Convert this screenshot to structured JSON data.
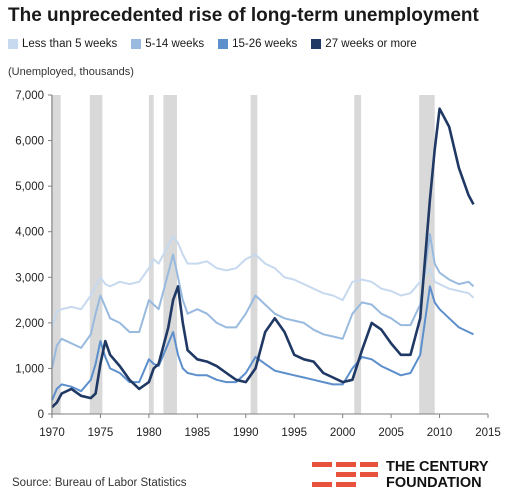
{
  "chart_data": {
    "type": "line",
    "title": "The unprecedented rise of long-term unemployment",
    "ylabel": "(Unemployed, thousands)",
    "xlabel": "",
    "xlim": [
      1970,
      2015
    ],
    "ylim": [
      0,
      7000
    ],
    "x_ticks": [
      1970,
      1975,
      1980,
      1985,
      1990,
      1995,
      2000,
      2005,
      2010,
      2015
    ],
    "x_tick_labels": [
      "1970",
      "1975",
      "1980",
      "1985",
      "1990",
      "1995",
      "2000",
      "2005",
      "2010",
      "2015"
    ],
    "y_ticks": [
      0,
      1000,
      2000,
      3000,
      4000,
      5000,
      6000,
      7000
    ],
    "y_tick_labels": [
      "0",
      "1,000",
      "2,000",
      "3,000",
      "4,000",
      "5,000",
      "6,000",
      "7,000"
    ],
    "legend_position": "top",
    "grid": false,
    "recession_bands": [
      [
        1969.9,
        1970.9
      ],
      [
        1973.9,
        1975.2
      ],
      [
        1980.0,
        1980.5
      ],
      [
        1981.5,
        1982.9
      ],
      [
        1990.5,
        1991.2
      ],
      [
        2001.2,
        2001.9
      ],
      [
        2007.9,
        2009.5
      ]
    ],
    "series": [
      {
        "name": "Less than 5 weeks",
        "color": "#c6d9ee",
        "x": [
          1970,
          1970.5,
          1971,
          1972,
          1973,
          1974,
          1974.5,
          1975,
          1975.5,
          1976,
          1977,
          1978,
          1979,
          1980,
          1980.5,
          1981,
          1982,
          1982.5,
          1983,
          1983.5,
          1984,
          1985,
          1986,
          1987,
          1988,
          1989,
          1990,
          1991,
          1992,
          1993,
          1994,
          1995,
          1996,
          1997,
          1998,
          1999,
          2000,
          2001,
          2002,
          2003,
          2004,
          2005,
          2006,
          2007,
          2008,
          2009,
          2009.5,
          2010,
          2011,
          2012,
          2013,
          2013.5
        ],
        "values": [
          1900,
          2250,
          2300,
          2350,
          2300,
          2600,
          2800,
          3000,
          2850,
          2800,
          2900,
          2850,
          2900,
          3200,
          3400,
          3300,
          3700,
          3900,
          3750,
          3500,
          3300,
          3300,
          3350,
          3200,
          3150,
          3200,
          3400,
          3500,
          3300,
          3200,
          3000,
          2950,
          2850,
          2750,
          2650,
          2600,
          2500,
          2900,
          2950,
          2900,
          2750,
          2700,
          2600,
          2650,
          2900,
          3200,
          2900,
          2850,
          2750,
          2700,
          2650,
          2550
        ]
      },
      {
        "name": "5-14 weeks",
        "color": "#99badf",
        "x": [
          1970,
          1970.5,
          1971,
          1972,
          1973,
          1974,
          1974.5,
          1975,
          1975.5,
          1976,
          1977,
          1978,
          1979,
          1980,
          1980.5,
          1981,
          1982,
          1982.5,
          1983,
          1983.5,
          1984,
          1985,
          1986,
          1987,
          1988,
          1989,
          1990,
          1991,
          1992,
          1993,
          1994,
          1995,
          1996,
          1997,
          1998,
          1999,
          2000,
          2001,
          2002,
          2003,
          2004,
          2005,
          2006,
          2007,
          2008,
          2009,
          2009.5,
          2010,
          2011,
          2012,
          2013,
          2013.5
        ],
        "values": [
          1000,
          1500,
          1650,
          1550,
          1450,
          1750,
          2200,
          2600,
          2350,
          2100,
          2000,
          1800,
          1800,
          2500,
          2400,
          2300,
          3100,
          3500,
          3000,
          2500,
          2200,
          2300,
          2200,
          2000,
          1900,
          1900,
          2200,
          2600,
          2400,
          2200,
          2100,
          2050,
          2000,
          1850,
          1750,
          1700,
          1650,
          2200,
          2450,
          2400,
          2200,
          2100,
          1950,
          1950,
          2400,
          3950,
          3300,
          3100,
          2950,
          2850,
          2900,
          2800
        ]
      },
      {
        "name": "15-26 weeks",
        "color": "#5c8fcc",
        "x": [
          1970,
          1970.5,
          1971,
          1972,
          1973,
          1974,
          1974.5,
          1975,
          1975.5,
          1976,
          1977,
          1978,
          1979,
          1980,
          1980.5,
          1981,
          1982,
          1982.5,
          1983,
          1983.5,
          1984,
          1985,
          1986,
          1987,
          1988,
          1989,
          1990,
          1991,
          1992,
          1993,
          1994,
          1995,
          1996,
          1997,
          1998,
          1999,
          2000,
          2001,
          2002,
          2003,
          2004,
          2005,
          2006,
          2007,
          2008,
          2009,
          2009.5,
          2010,
          2011,
          2012,
          2013,
          2013.5
        ],
        "values": [
          300,
          550,
          650,
          600,
          500,
          750,
          1100,
          1600,
          1250,
          1000,
          900,
          700,
          700,
          1200,
          1100,
          1050,
          1550,
          1800,
          1300,
          1000,
          900,
          850,
          850,
          750,
          700,
          700,
          900,
          1250,
          1100,
          950,
          900,
          850,
          800,
          750,
          700,
          650,
          650,
          1000,
          1250,
          1200,
          1050,
          950,
          850,
          900,
          1300,
          2800,
          2450,
          2300,
          2100,
          1900,
          1800,
          1750
        ]
      },
      {
        "name": "27 weeks or more",
        "color": "#1f3864",
        "x": [
          1970,
          1970.5,
          1971,
          1972,
          1973,
          1974,
          1974.5,
          1975,
          1975.5,
          1976,
          1977,
          1978,
          1979,
          1980,
          1980.5,
          1981,
          1982,
          1982.5,
          1983,
          1983.5,
          1984,
          1985,
          1986,
          1987,
          1988,
          1989,
          1990,
          1991,
          1992,
          1993,
          1994,
          1995,
          1996,
          1997,
          1998,
          1999,
          2000,
          2001,
          2002,
          2003,
          2004,
          2005,
          2006,
          2007,
          2008,
          2009,
          2009.5,
          2010,
          2011,
          2012,
          2013,
          2013.5
        ],
        "values": [
          150,
          250,
          450,
          550,
          400,
          350,
          450,
          1100,
          1600,
          1300,
          1050,
          750,
          550,
          700,
          1000,
          1100,
          1900,
          2500,
          2800,
          2000,
          1400,
          1200,
          1150,
          1050,
          900,
          750,
          700,
          1000,
          1800,
          2100,
          1800,
          1300,
          1200,
          1150,
          900,
          800,
          700,
          750,
          1400,
          2000,
          1850,
          1550,
          1300,
          1300,
          2100,
          4700,
          5800,
          6700,
          6300,
          5400,
          4800,
          4600
        ]
      }
    ]
  },
  "source": "Source: Bureau of Labor Statistics",
  "brand": {
    "line1": "THE CENTURY",
    "line2": "FOUNDATION"
  },
  "colors": {
    "recession_band": "#d9d9d9",
    "axis": "#7f7f7f",
    "brand_accent": "#e8513c"
  }
}
